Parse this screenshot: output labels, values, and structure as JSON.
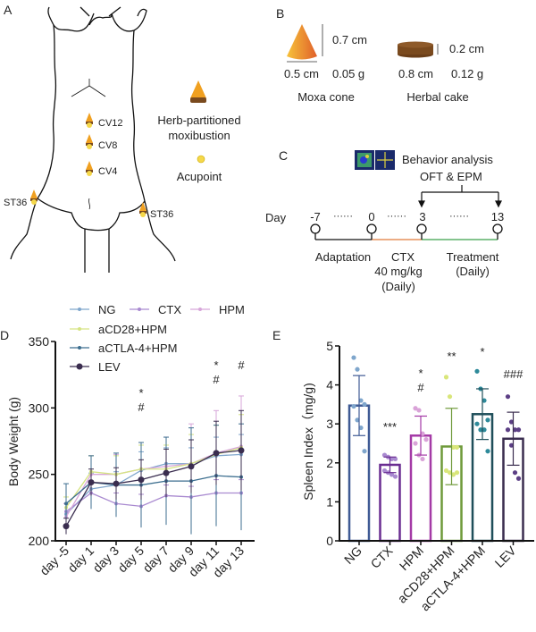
{
  "panels": {
    "a": "A",
    "b": "B",
    "c": "C",
    "d": "D",
    "e": "E"
  },
  "panel_a": {
    "acupoints": [
      "CV12",
      "CV8",
      "CV4",
      "ST36",
      "ST36"
    ],
    "legend_moxa_line1": "Herb-partitioned",
    "legend_moxa_line2": "moxibustion",
    "legend_acupoint": "Acupoint",
    "colors": {
      "cone": "#f0a020",
      "cake": "#7a4a1e",
      "acupoint": "#f5d84a"
    }
  },
  "panel_b": {
    "cone_height": "0.7 cm",
    "cone_diameter": "0.5 cm",
    "cone_weight": "0.05 g",
    "cone_name": "Moxa cone",
    "cake_height": "0.2 cm",
    "cake_diameter": "0.8 cm",
    "cake_weight": "0.12 g",
    "cake_name": "Herbal cake"
  },
  "panel_c": {
    "behavior_line1": "Behavior analysis",
    "behavior_line2": "OFT & EPM",
    "day_label": "Day",
    "days": [
      "-7",
      "0",
      "3",
      "13"
    ],
    "dots": "······",
    "phase_adaptation": "Adaptation",
    "phase_ctx_1": "CTX",
    "phase_ctx_2": "40 mg/kg",
    "phase_ctx_3": "(Daily)",
    "phase_treatment_1": "Treatment",
    "phase_treatment_2": "(Daily)",
    "colors": {
      "adaptation": "#111111",
      "ctx": "#e07a3a",
      "treatment": "#3aa04a"
    }
  },
  "chart_data": [
    {
      "type": "line",
      "ylabel": "Body Weight (g)",
      "xlabel": "",
      "categories": [
        "day -5",
        "day 1",
        "day 3",
        "day 5",
        "day 7",
        "day 9",
        "day 11",
        "day 13"
      ],
      "ylim": [
        200,
        350
      ],
      "yticks": [
        "200",
        "250",
        "300",
        "350"
      ],
      "legend": "top",
      "series": [
        {
          "name": "NG",
          "color": "#7fa6cc",
          "values": [
            220,
            239,
            242,
            253,
            258,
            258,
            264,
            265
          ],
          "sd": [
            8,
            12,
            10,
            14,
            12,
            12,
            14,
            15
          ]
        },
        {
          "name": "CTX",
          "color": "#a98ad0",
          "values": [
            222,
            236,
            228,
            226,
            234,
            233,
            236,
            236
          ],
          "sd": [
            6,
            8,
            8,
            9,
            8,
            8,
            10,
            10
          ]
        },
        {
          "name": "HPM",
          "color": "#d7a6d9",
          "values": [
            218,
            250,
            250,
            254,
            256,
            258,
            266,
            271
          ],
          "sd": [
            10,
            14,
            15,
            20,
            22,
            30,
            32,
            38
          ]
        },
        {
          "name": "aCD28+HPM",
          "color": "#d6e483",
          "values": [
            225,
            252,
            250,
            254,
            254,
            258,
            265,
            270
          ],
          "sd": [
            8,
            12,
            14,
            18,
            18,
            22,
            22,
            25
          ]
        },
        {
          "name": "aCTLA-4+HPM",
          "color": "#3c6e8f",
          "values": [
            228,
            244,
            242,
            242,
            245,
            245,
            249,
            248
          ],
          "sd": [
            15,
            20,
            24,
            32,
            33,
            40,
            38,
            40
          ]
        },
        {
          "name": "LEV",
          "color": "#3a2d4f",
          "values": [
            211,
            244,
            243,
            246,
            251,
            256,
            266,
            268
          ],
          "sd": [
            6,
            10,
            12,
            15,
            18,
            20,
            24,
            30
          ]
        }
      ],
      "annotations": [
        {
          "category": "day 5",
          "lines": [
            "*",
            "#"
          ]
        },
        {
          "category": "day 11",
          "lines": [
            "*",
            "#"
          ]
        },
        {
          "category": "day 13",
          "lines": [
            "#"
          ]
        }
      ]
    },
    {
      "type": "bar",
      "ylabel": "Spleen Index（mg/g)",
      "xlabel": "",
      "categories": [
        "NG",
        "CTX",
        "HPM",
        "aCD28+HPM",
        "aCTLA-4+HPM",
        "LEV"
      ],
      "ylim": [
        0,
        5
      ],
      "yticks": [
        "0",
        "1",
        "2",
        "3",
        "4",
        "5"
      ],
      "values": [
        3.47,
        1.95,
        2.7,
        2.42,
        3.25,
        2.62
      ],
      "sd": [
        0.77,
        0.2,
        0.5,
        0.98,
        0.65,
        0.68
      ],
      "points": [
        [
          4.7,
          4.4,
          3.6,
          3.5,
          3.45,
          3.1,
          2.9,
          2.3
        ],
        [
          2.2,
          2.15,
          2.1,
          2.1,
          1.8,
          1.75,
          1.7,
          1.65
        ],
        [
          3.4,
          3.35,
          2.75,
          2.6,
          2.5,
          2.2,
          2.1
        ],
        [
          4.2,
          3.7,
          2.4,
          2.4,
          1.8,
          1.75,
          1.7,
          1.75
        ],
        [
          4.35,
          3.9,
          3.6,
          3.1,
          3.0,
          2.85,
          2.85,
          2.3
        ],
        [
          3.7,
          3.05,
          2.85,
          2.85,
          2.85,
          2.45,
          1.75,
          1.6
        ]
      ],
      "bar_colors": [
        "#3f5a94",
        "#6a2d91",
        "#a43aa6",
        "#6f9a3a",
        "#1f4f5a",
        "#3a2d4f"
      ],
      "point_colors": [
        "#7fa6cc",
        "#a98ad0",
        "#d9a3d8",
        "#d9e67a",
        "#2e8a9a",
        "#5c3f85"
      ],
      "annotations": [
        "",
        "***",
        "*\n#",
        "**",
        "*",
        "###"
      ]
    }
  ]
}
